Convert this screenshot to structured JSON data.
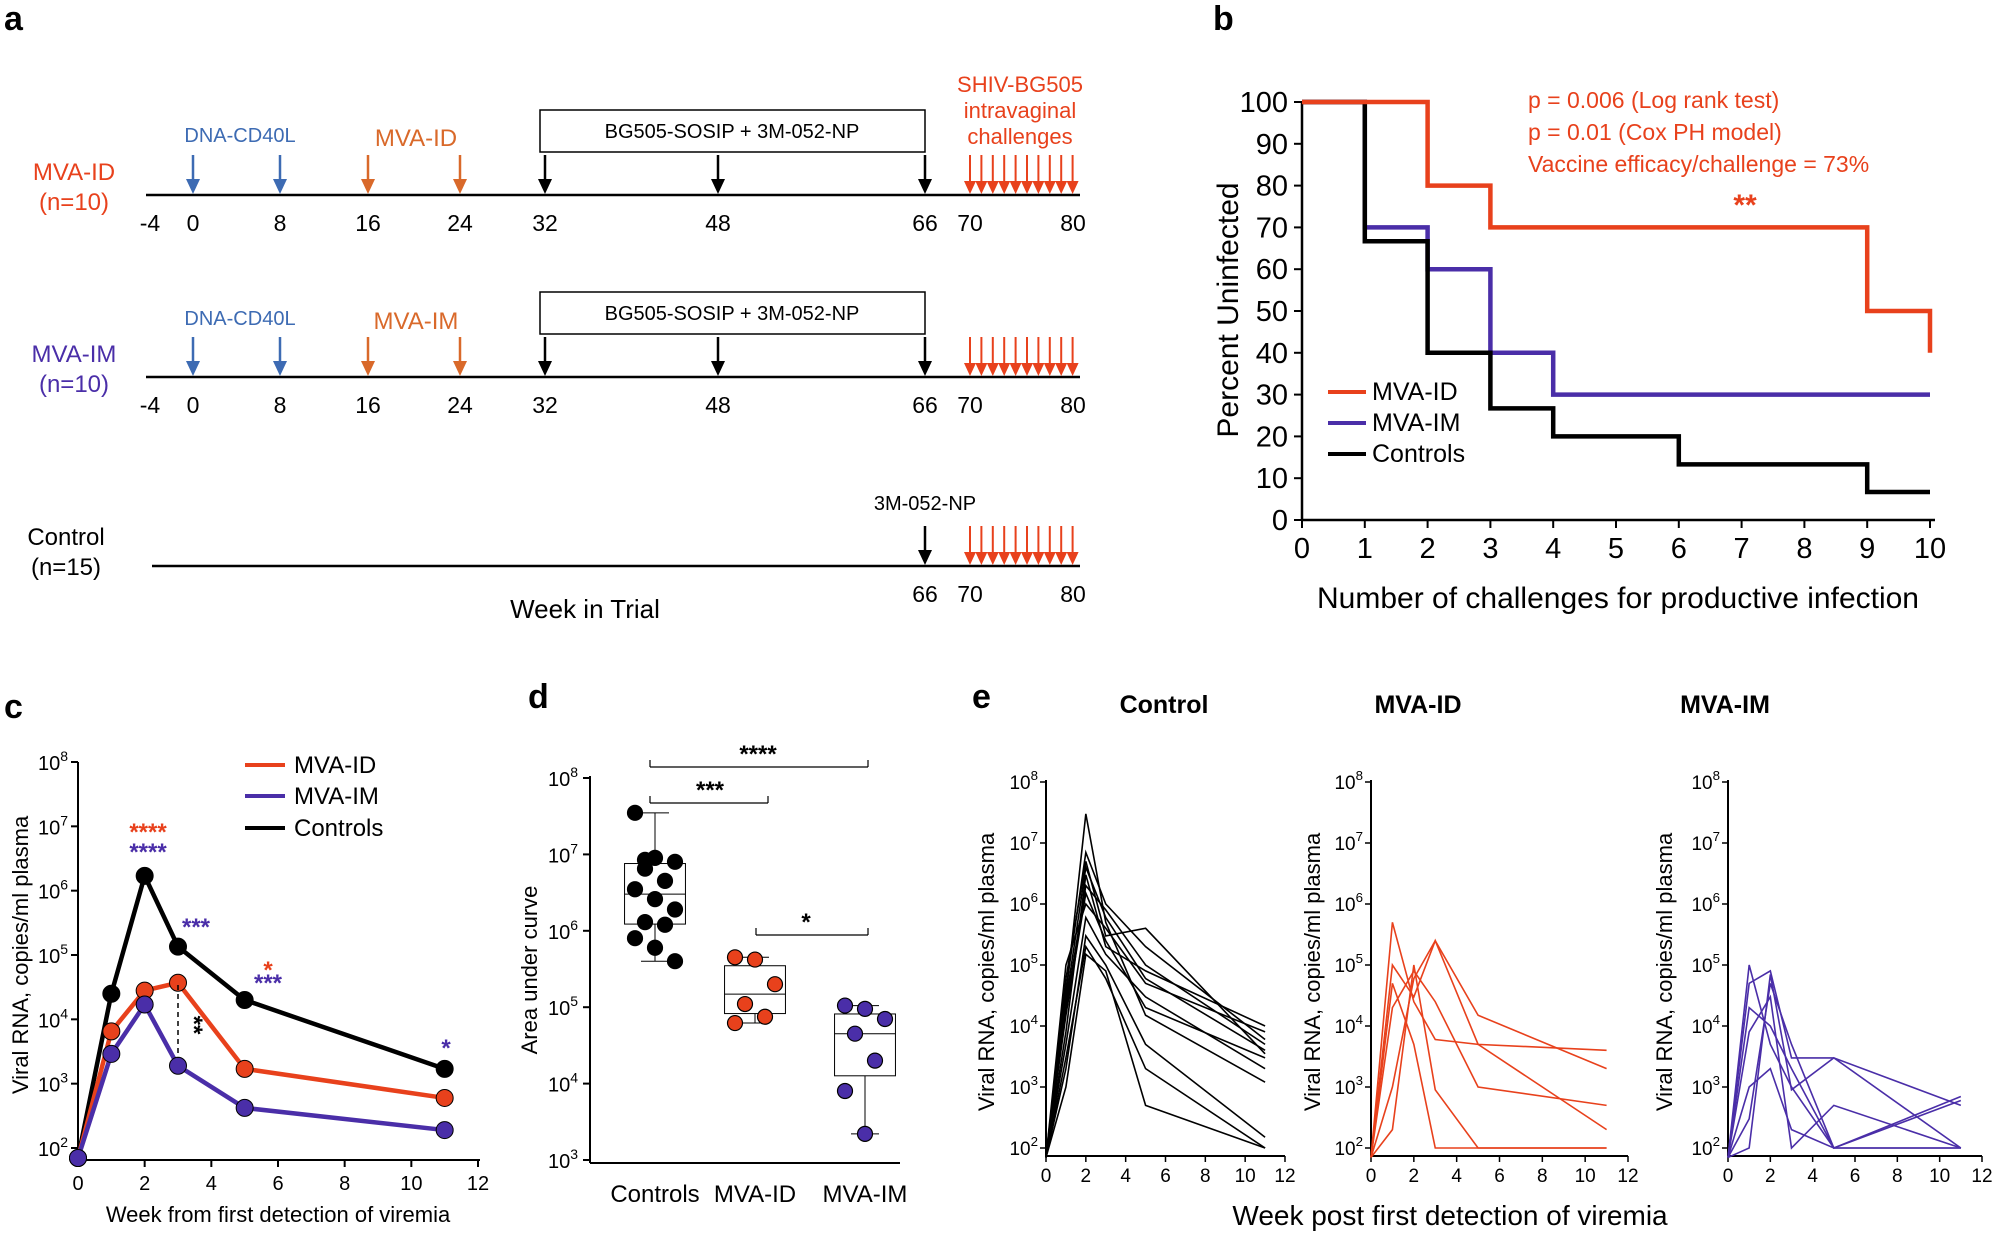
{
  "colors": {
    "mva_id": "#e8411c",
    "mva_im": "#4a2ea8",
    "controls": "#000000",
    "dna": "#3d6bb3",
    "mva_boost": "#d9692a"
  },
  "panel_labels": {
    "a": "a",
    "b": "b",
    "c": "c",
    "d": "d",
    "e": "e"
  },
  "panel_a": {
    "rows": [
      {
        "label": "MVA-ID",
        "n": "(n=10)",
        "dna_label": "DNA-CD40L",
        "mva_label": "MVA-ID",
        "protein_label": "BG505-SOSIP + 3M-052-NP",
        "challenge_label_1": "SHIV-BG505",
        "challenge_label_2": "intravaginal",
        "challenge_label_3": "challenges"
      },
      {
        "label": "MVA-IM",
        "n": "(n=10)",
        "dna_label": "DNA-CD40L",
        "mva_label": "MVA-IM",
        "protein_label": "BG505-SOSIP + 3M-052-NP"
      },
      {
        "label": "Control",
        "n": "(n=15)",
        "adjuvant_label": "3M-052-NP"
      }
    ],
    "weeks": [
      "-4",
      "0",
      "8",
      "16",
      "24",
      "32",
      "48",
      "66",
      "70",
      "80"
    ],
    "control_weeks": [
      "66",
      "70",
      "80"
    ],
    "xlabel": "Week in Trial"
  },
  "panel_b": {
    "annotation_1": "p = 0.006 (Log rank test)",
    "annotation_2": "p = 0.01 (Cox PH model)",
    "annotation_3": "Vaccine efficacy/challenge = 73%",
    "significance": "**",
    "legend": [
      "MVA-ID",
      "MVA-IM",
      "Controls"
    ]
  },
  "panel_c": {
    "legend": [
      "MVA-ID",
      "MVA-IM",
      "Controls"
    ],
    "stars_w2_id": "****",
    "stars_w2_im": "****",
    "stars_w3_im": "***",
    "stars_w5_id": "*",
    "stars_w5_im": "***",
    "stars_w11_im": "*",
    "stars_w3_pair": "**"
  },
  "panel_d": {
    "bracket_1": "****",
    "bracket_2": "***",
    "bracket_3": "*"
  },
  "panel_e": {
    "titles": [
      "Control",
      "MVA-ID",
      "MVA-IM"
    ],
    "xlabel": "Week post first detection of viremia",
    "ylabel": "Viral RNA, copies/ml plasma"
  },
  "chart_data": [
    {
      "type": "line",
      "panel": "b",
      "xlabel": "Number of challenges for productive infection",
      "ylabel": "Percent Uninfected",
      "xlim": [
        0,
        10
      ],
      "ylim": [
        0,
        100
      ],
      "x_ticks": [
        "0",
        "1",
        "2",
        "3",
        "4",
        "5",
        "6",
        "7",
        "8",
        "9",
        "10"
      ],
      "y_ticks": [
        "0",
        "10",
        "20",
        "30",
        "40",
        "50",
        "60",
        "70",
        "80",
        "90",
        "100"
      ],
      "step": true,
      "series": [
        {
          "name": "MVA-ID",
          "x": [
            0,
            1,
            2,
            3,
            9,
            10
          ],
          "y": [
            100,
            100,
            80,
            70,
            50,
            40
          ]
        },
        {
          "name": "MVA-IM",
          "x": [
            0,
            1,
            2,
            3,
            4,
            10
          ],
          "y": [
            100,
            70,
            60,
            40,
            30,
            30
          ]
        },
        {
          "name": "Controls",
          "x": [
            0,
            1,
            2,
            3,
            4,
            6,
            9,
            10
          ],
          "y": [
            100,
            66.7,
            40,
            26.7,
            20,
            13.3,
            6.7,
            6.7
          ]
        }
      ]
    },
    {
      "type": "line",
      "panel": "c",
      "xlabel": "Week from first detection of viremia",
      "ylabel": "Viral RNA, copies/ml plasma",
      "yscale": "log",
      "xlim": [
        0,
        12
      ],
      "ylim": [
        100,
        100000000
      ],
      "x_ticks": [
        "0",
        "2",
        "4",
        "6",
        "8",
        "10",
        "12"
      ],
      "series": [
        {
          "name": "MVA-ID",
          "x": [
            0,
            1,
            2,
            3,
            5,
            11
          ],
          "y": [
            70,
            6500,
            28000,
            37000,
            1700,
            600
          ]
        },
        {
          "name": "MVA-IM",
          "x": [
            0,
            1,
            2,
            3,
            5,
            11
          ],
          "y": [
            70,
            2900,
            17000,
            1900,
            420,
            190
          ]
        },
        {
          "name": "Controls",
          "x": [
            0,
            1,
            2,
            3,
            5,
            11
          ],
          "y": [
            70,
            25000,
            1700000,
            135000,
            20000,
            1700
          ]
        }
      ]
    },
    {
      "type": "scatter",
      "panel": "d",
      "ylabel": "Area under curve",
      "yscale": "log",
      "ylim": [
        1000,
        100000000
      ],
      "categories": [
        "Controls",
        "MVA-ID",
        "MVA-IM"
      ],
      "series": [
        {
          "name": "Controls",
          "values": [
            35000000,
            9000000,
            8000000,
            6500000,
            4500000,
            3500000,
            2600000,
            1900000,
            1300000,
            1200000,
            800000,
            600000,
            400000,
            8500000
          ]
        },
        {
          "name": "MVA-ID",
          "values": [
            450000,
            420000,
            200000,
            110000,
            75000,
            62000
          ]
        },
        {
          "name": "MVA-IM",
          "values": [
            105000,
            95000,
            70000,
            45000,
            20000,
            8000,
            2200
          ]
        }
      ]
    },
    {
      "type": "line",
      "panel": "e",
      "yscale": "log",
      "ylim": [
        100,
        100000000
      ],
      "xlim": [
        0,
        12
      ],
      "x_ticks": [
        "0",
        "2",
        "4",
        "6",
        "8",
        "10",
        "12"
      ],
      "groups": [
        {
          "name": "Control",
          "x": [
            0,
            1,
            2,
            3,
            5,
            11
          ],
          "lines": [
            [
              70,
              30000,
              30000000,
              500000,
              15000,
              1200
            ],
            [
              70,
              60000,
              5000000,
              300000,
              400000,
              3500
            ],
            [
              70,
              20000,
              2000000,
              800000,
              100000,
              5000
            ],
            [
              70,
              100000,
              1000000,
              400000,
              50000,
              8000
            ],
            [
              70,
              5000,
              600000,
              150000,
              30000,
              2000
            ],
            [
              70,
              2000,
              300000,
              100000,
              5000,
              150
            ],
            [
              70,
              8000,
              3000000,
              200000,
              80000,
              10000
            ],
            [
              70,
              40000,
              7000000,
              1000000,
              200000,
              6000
            ],
            [
              70,
              3000,
              200000,
              60000,
              2000,
              100
            ],
            [
              70,
              15000,
              1500000,
              250000,
              20000,
              3000
            ],
            [
              70,
              25000,
              4000000,
              600000,
              60000,
              4000
            ],
            [
              70,
              1000,
              150000,
              80000,
              500,
              100
            ]
          ]
        },
        {
          "name": "MVA-ID",
          "x": [
            0,
            1,
            2,
            3,
            5,
            11
          ],
          "lines": [
            [
              70,
              500000,
              25000,
              6000,
              5000,
              200
            ],
            [
              70,
              100000,
              30000,
              250000,
              5000,
              4000
            ],
            [
              70,
              1000,
              60000,
              250000,
              15000,
              2000
            ],
            [
              70,
              200,
              100000,
              900,
              100,
              100
            ],
            [
              70,
              50000,
              5000,
              100,
              100,
              100
            ],
            [
              70,
              20000,
              80000,
              25000,
              1000,
              500
            ]
          ]
        },
        {
          "name": "MVA-IM",
          "x": [
            0,
            1,
            2,
            3,
            5,
            11
          ],
          "lines": [
            [
              70,
              50000,
              80000,
              3000,
              3000,
              500
            ],
            [
              70,
              20000,
              10000,
              2000,
              100,
              700
            ],
            [
              70,
              100000,
              5000,
              1000,
              100,
              100
            ],
            [
              70,
              300,
              50000,
              5000,
              100,
              600
            ],
            [
              70,
              8000,
              30000,
              100,
              500,
              100
            ],
            [
              70,
              1000,
              2000,
              200,
              100,
              100
            ],
            [
              70,
              100,
              70000,
              900,
              3000,
              100
            ]
          ]
        }
      ]
    }
  ]
}
